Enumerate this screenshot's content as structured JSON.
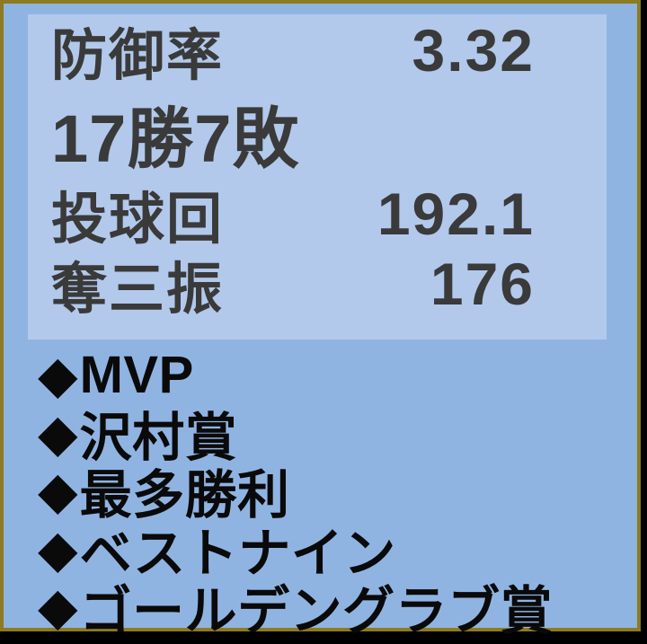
{
  "card": {
    "background_color": "#90b4e2",
    "border_color": "#8d7b20",
    "outside_color": "#000000"
  },
  "stats_panel": {
    "background_color": "#b2c9ec",
    "text_color": "#3a3a3a",
    "rows": [
      {
        "label": "防御率",
        "value": "3.32"
      },
      {
        "label": "17勝7敗",
        "value": ""
      },
      {
        "label": "投球回",
        "value": "192.1"
      },
      {
        "label": "奪三振",
        "value": "176"
      }
    ]
  },
  "awards": {
    "bullet_icon": "◆",
    "text_color": "#0a0a0a",
    "items": [
      {
        "label": "MVP"
      },
      {
        "label": "沢村賞"
      },
      {
        "label": "最多勝利"
      },
      {
        "label": "ベストナイン"
      },
      {
        "label": "ゴールデングラブ賞"
      }
    ]
  }
}
